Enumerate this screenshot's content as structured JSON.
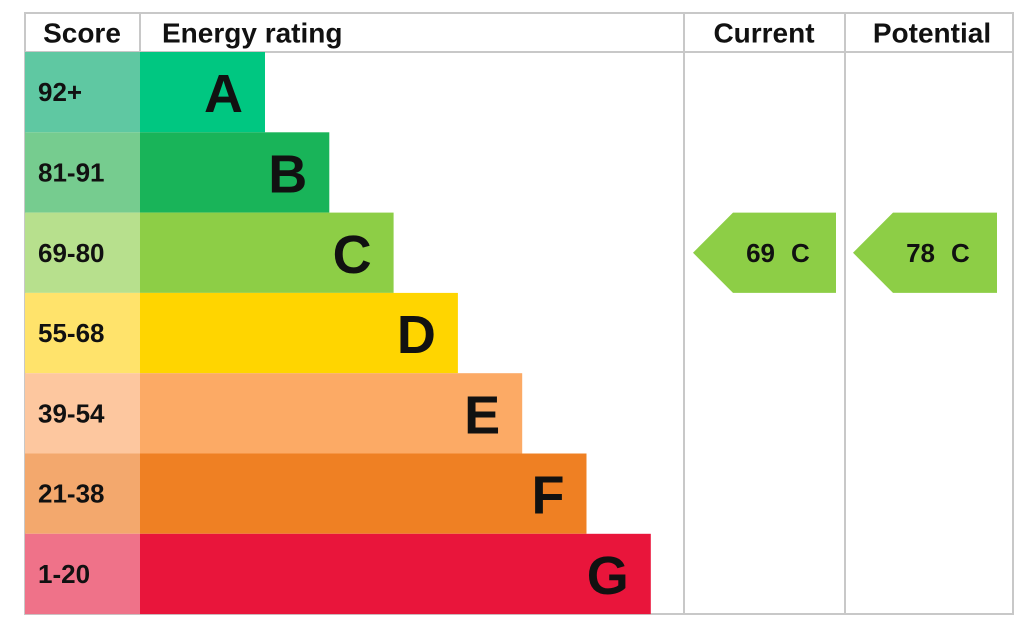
{
  "header": {
    "score": "Score",
    "rating": "Energy rating",
    "current": "Current",
    "potential": "Potential"
  },
  "bands": [
    {
      "score": "92+",
      "letter": "A",
      "color": "#00c781",
      "score_color": "#5fc8a2"
    },
    {
      "score": "81-91",
      "letter": "B",
      "color": "#19b459",
      "score_color": "#76cc8f"
    },
    {
      "score": "69-80",
      "letter": "C",
      "color": "#8dce46",
      "score_color": "#b7e08d"
    },
    {
      "score": "55-68",
      "letter": "D",
      "color": "#ffd500",
      "score_color": "#ffe36b"
    },
    {
      "score": "39-54",
      "letter": "E",
      "color": "#fcaa65",
      "score_color": "#fdc79f"
    },
    {
      "score": "21-38",
      "letter": "F",
      "color": "#ef8023",
      "score_color": "#f3a86d"
    },
    {
      "score": "1-20",
      "letter": "G",
      "color": "#e9153b",
      "score_color": "#ef7289"
    }
  ],
  "current": {
    "value": 69,
    "letter": "C"
  },
  "potential": {
    "value": 78,
    "letter": "C"
  }
}
